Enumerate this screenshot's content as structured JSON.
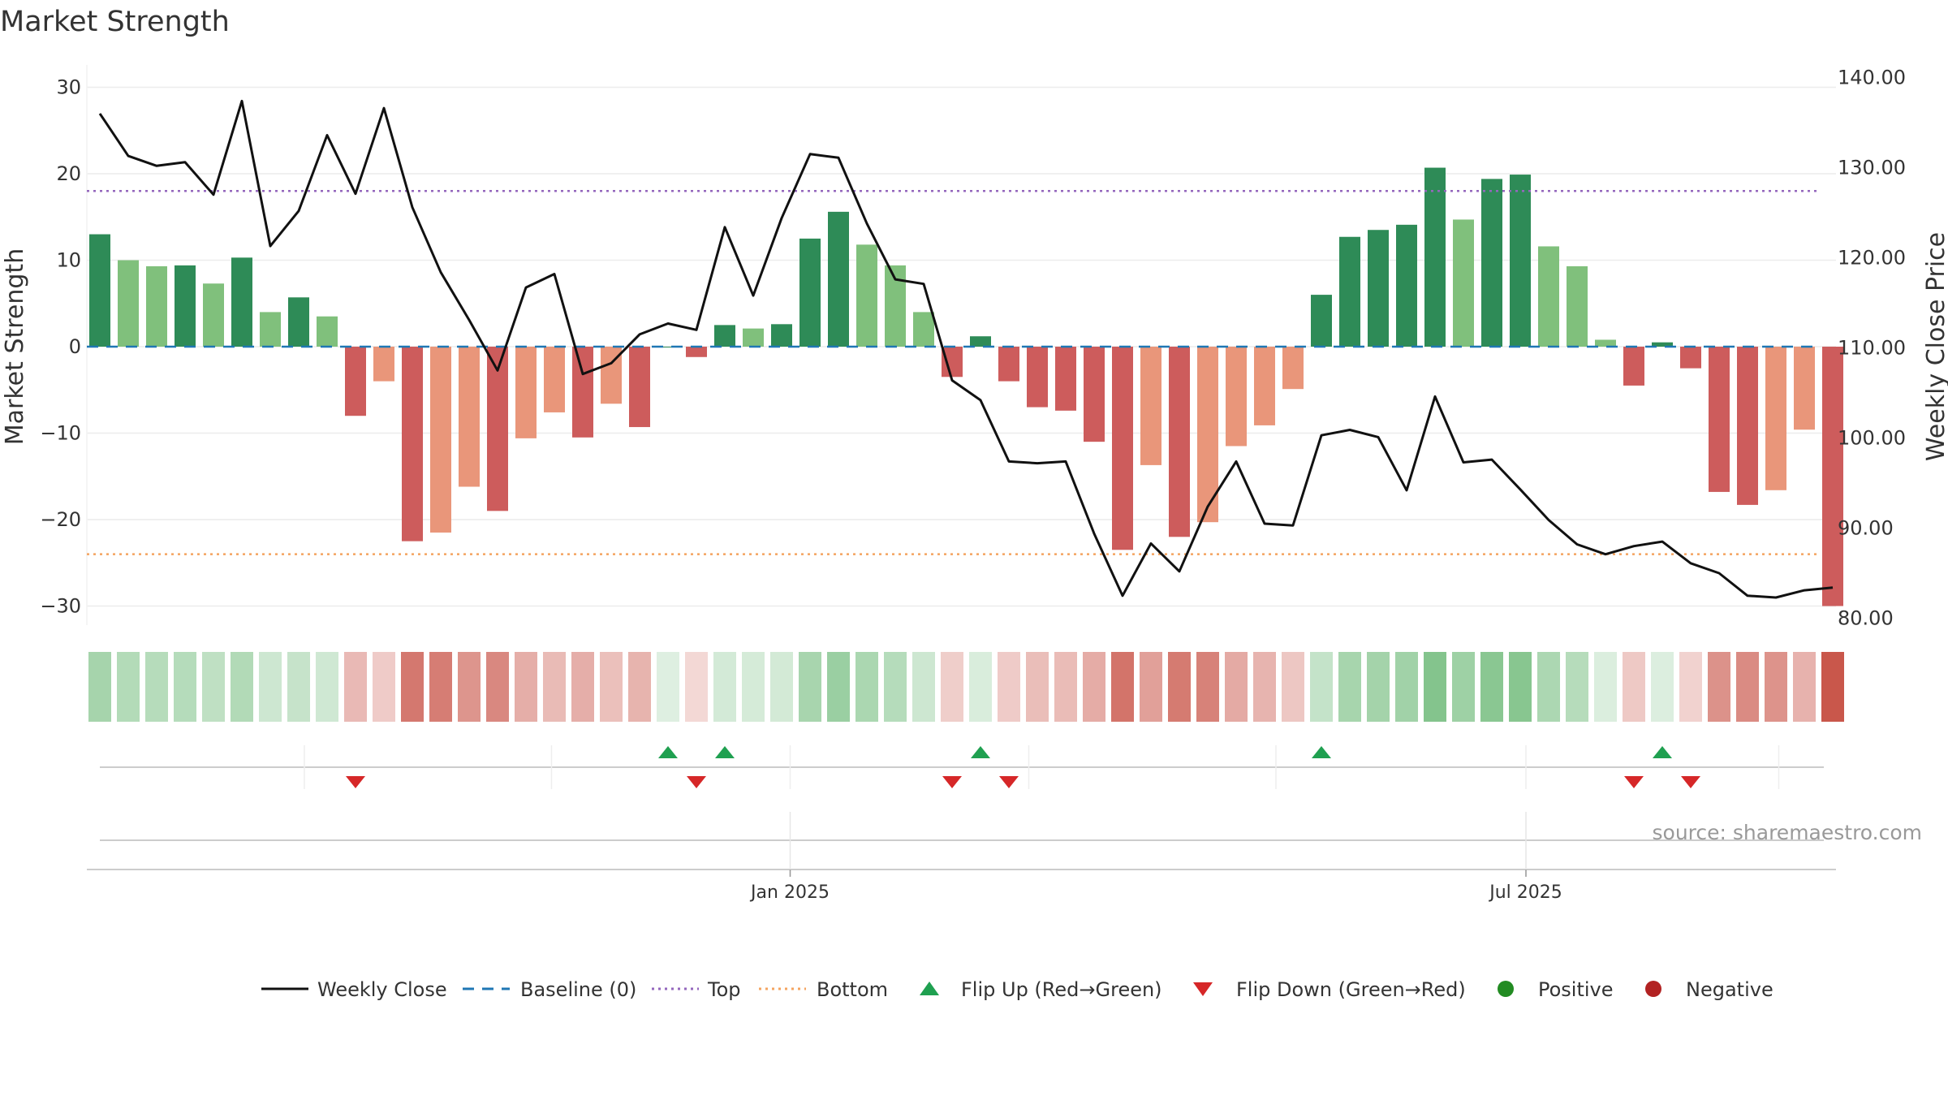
{
  "chart_data": {
    "type": "bar",
    "title": "Market Strength",
    "source": "source: sharemaestro.com",
    "ylabel_left": "Market Strength",
    "ylabel_right": "Weekly Close Price",
    "ylim_left": [
      -32,
      32
    ],
    "ylim_right": [
      78.5,
      141.0
    ],
    "yticks_left": [
      "30",
      "20",
      "10",
      "0",
      "−10",
      "−20",
      "−30"
    ],
    "yticks_left_values": [
      30,
      20,
      10,
      0,
      -10,
      -20,
      -30
    ],
    "yticks_right": [
      "140.00",
      "130.00",
      "120.00",
      "110.00",
      "100.00",
      "90.00",
      "80.00"
    ],
    "yticks_right_values": [
      140,
      130,
      120,
      110,
      100,
      90,
      80
    ],
    "x_ticks": [
      {
        "label": "Jan 2025",
        "week": 24.3
      },
      {
        "label": "Jul 2025",
        "week": 50.2
      }
    ],
    "month_boundaries": [
      7.2,
      15.9,
      24.3,
      32.7,
      41.4,
      50.2,
      59.1
    ],
    "top_level": 18,
    "bottom_level": -24,
    "baseline": 0,
    "strength": [
      13,
      10,
      9.3,
      9.4,
      7.3,
      10.3,
      4,
      5.7,
      3.5,
      -8,
      -4,
      -22.5,
      -21.5,
      -16.2,
      -19,
      -10.6,
      -7.6,
      -10.5,
      -6.6,
      -9.3,
      0,
      -1.2,
      2.5,
      2.1,
      2.6,
      12.5,
      15.6,
      11.8,
      9.4,
      4,
      -3.5,
      1.2,
      -4,
      -7,
      -7.4,
      -11,
      -23.5,
      -13.7,
      -22,
      -20.3,
      -11.5,
      -9.1,
      -4.9,
      6,
      12.7,
      13.5,
      14.1,
      20.7,
      14.7,
      19.4,
      19.9,
      11.6,
      9.3,
      0.8,
      -4.5,
      0.5,
      -2.5,
      -16.8,
      -18.3,
      -16.6,
      -9.6,
      -30
    ],
    "close": [
      136.0,
      131.3,
      130.2,
      130.6,
      127.0,
      137.4,
      121.3,
      125.2,
      133.6,
      127.1,
      136.6,
      125.6,
      118.4,
      113.1,
      107.5,
      116.7,
      118.2,
      107.1,
      108.3,
      111.5,
      112.7,
      112.0,
      123.4,
      115.8,
      124.4,
      131.5,
      131.1,
      123.8,
      117.6,
      117.1,
      106.4,
      104.2,
      97.4,
      97.2,
      97.4,
      89.4,
      82.5,
      88.3,
      85.2,
      92.4,
      97.4,
      90.5,
      90.3,
      100.3,
      100.9,
      100.1,
      94.2,
      104.6,
      97.3,
      97.6,
      94.3,
      90.9,
      88.2,
      87.1,
      88.0,
      88.5,
      86.1,
      85.0,
      82.5,
      82.3,
      83.1,
      83.4
    ],
    "flips_up": [
      20,
      22,
      31,
      43,
      55
    ],
    "flips_down": [
      9,
      21,
      30,
      32,
      54,
      56
    ],
    "colors": {
      "strong_green": "#2e8b57",
      "light_green": "#80c07c",
      "strong_red": "#cd5c5c",
      "light_red": "#e9967a",
      "line": "#111111",
      "baseline": "#1f77b4",
      "top": "#9467bd",
      "bottom": "#f4a460",
      "flip_up": "#1fa050",
      "flip_down": "#d62728",
      "positive": "#228b22",
      "negative": "#b22222"
    },
    "legend": [
      {
        "label": "Weekly Close",
        "symbol": "line"
      },
      {
        "label": "Baseline (0)",
        "symbol": "dash"
      },
      {
        "label": "Top",
        "symbol": "dot-purple"
      },
      {
        "label": "Bottom",
        "symbol": "dot-orange"
      },
      {
        "label": "Flip Up (Red→Green)",
        "symbol": "tri-up"
      },
      {
        "label": "Flip Down (Green→Red)",
        "symbol": "tri-down"
      },
      {
        "label": "Positive",
        "symbol": "circle-green"
      },
      {
        "label": "Negative",
        "symbol": "circle-red"
      }
    ]
  }
}
